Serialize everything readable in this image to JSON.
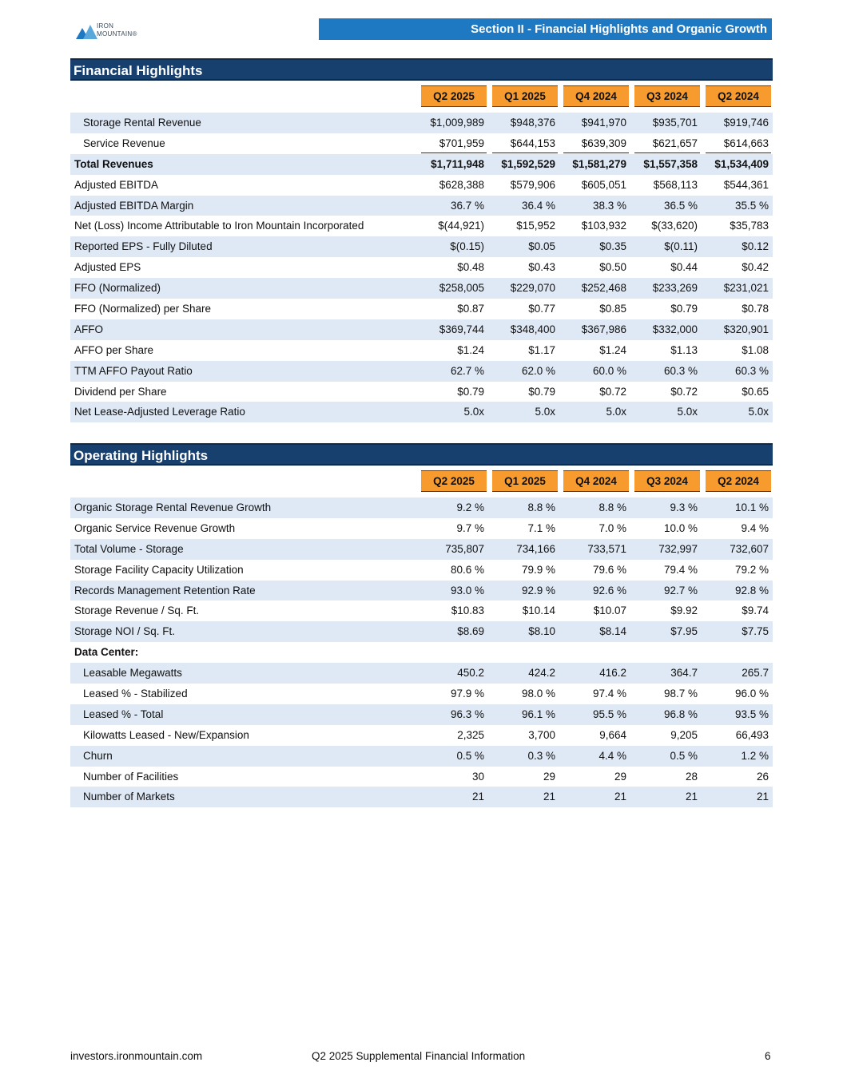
{
  "header": {
    "logo_text": [
      "IRON",
      "MOUNTAIN®"
    ],
    "section_title": "Section II - Financial Highlights and Organic Growth"
  },
  "quarters": [
    "Q2 2025",
    "Q1 2025",
    "Q4 2024",
    "Q3 2024",
    "Q2 2024"
  ],
  "financial": {
    "title": "Financial Highlights",
    "rows": [
      {
        "label": "Storage Rental Revenue",
        "indent": true,
        "bold": false,
        "shade": true,
        "values": [
          "$1,009,989",
          "$948,376",
          "$941,970",
          "$935,701",
          "$919,746"
        ]
      },
      {
        "label": "Service Revenue",
        "indent": true,
        "bold": false,
        "shade": false,
        "underline": true,
        "values": [
          "$701,959",
          "$644,153",
          "$639,309",
          "$621,657",
          "$614,663"
        ]
      },
      {
        "label": "Total Revenues",
        "indent": false,
        "bold": true,
        "shade": true,
        "values": [
          "$1,711,948",
          "$1,592,529",
          "$1,581,279",
          "$1,557,358",
          "$1,534,409"
        ]
      },
      {
        "label": "Adjusted EBITDA",
        "indent": false,
        "bold": false,
        "shade": false,
        "values": [
          "$628,388",
          "$579,906",
          "$605,051",
          "$568,113",
          "$544,361"
        ]
      },
      {
        "label": "Adjusted EBITDA Margin",
        "indent": false,
        "bold": false,
        "shade": true,
        "values": [
          "36.7 %",
          "36.4 %",
          "38.3 %",
          "36.5 %",
          "35.5 %"
        ]
      },
      {
        "label": "Net (Loss) Income Attributable to Iron Mountain Incorporated",
        "indent": false,
        "bold": false,
        "shade": false,
        "values": [
          "$(44,921)",
          "$15,952",
          "$103,932",
          "$(33,620)",
          "$35,783"
        ]
      },
      {
        "label": "Reported EPS - Fully Diluted",
        "indent": false,
        "bold": false,
        "shade": true,
        "values": [
          "$(0.15)",
          "$0.05",
          "$0.35",
          "$(0.11)",
          "$0.12"
        ]
      },
      {
        "label": "Adjusted EPS",
        "indent": false,
        "bold": false,
        "shade": false,
        "values": [
          "$0.48",
          "$0.43",
          "$0.50",
          "$0.44",
          "$0.42"
        ]
      },
      {
        "label": "FFO (Normalized)",
        "indent": false,
        "bold": false,
        "shade": true,
        "values": [
          "$258,005",
          "$229,070",
          "$252,468",
          "$233,269",
          "$231,021"
        ]
      },
      {
        "label": "FFO (Normalized) per Share",
        "indent": false,
        "bold": false,
        "shade": false,
        "values": [
          "$0.87",
          "$0.77",
          "$0.85",
          "$0.79",
          "$0.78"
        ]
      },
      {
        "label": "AFFO",
        "indent": false,
        "bold": false,
        "shade": true,
        "values": [
          "$369,744",
          "$348,400",
          "$367,986",
          "$332,000",
          "$320,901"
        ]
      },
      {
        "label": "AFFO per Share",
        "indent": false,
        "bold": false,
        "shade": false,
        "values": [
          "$1.24",
          "$1.17",
          "$1.24",
          "$1.13",
          "$1.08"
        ]
      },
      {
        "label": "TTM AFFO Payout Ratio",
        "indent": false,
        "bold": false,
        "shade": true,
        "values": [
          "62.7 %",
          "62.0 %",
          "60.0 %",
          "60.3 %",
          "60.3 %"
        ]
      },
      {
        "label": "Dividend per Share",
        "indent": false,
        "bold": false,
        "shade": false,
        "values": [
          "$0.79",
          "$0.79",
          "$0.72",
          "$0.72",
          "$0.65"
        ]
      },
      {
        "label": "Net Lease-Adjusted Leverage Ratio",
        "indent": false,
        "bold": false,
        "shade": true,
        "values": [
          "5.0x",
          "5.0x",
          "5.0x",
          "5.0x",
          "5.0x"
        ]
      }
    ]
  },
  "operating": {
    "title": "Operating Highlights",
    "rows": [
      {
        "label": "Organic Storage Rental Revenue Growth",
        "indent": false,
        "bold": false,
        "shade": true,
        "values": [
          "9.2 %",
          "8.8 %",
          "8.8 %",
          "9.3 %",
          "10.1 %"
        ]
      },
      {
        "label": "Organic Service Revenue Growth",
        "indent": false,
        "bold": false,
        "shade": false,
        "values": [
          "9.7 %",
          "7.1 %",
          "7.0 %",
          "10.0 %",
          "9.4 %"
        ]
      },
      {
        "label": "Total Volume - Storage",
        "indent": false,
        "bold": false,
        "shade": true,
        "values": [
          "735,807",
          "734,166",
          "733,571",
          "732,997",
          "732,607"
        ]
      },
      {
        "label": "Storage Facility Capacity Utilization",
        "indent": false,
        "bold": false,
        "shade": false,
        "values": [
          "80.6 %",
          "79.9 %",
          "79.6 %",
          "79.4 %",
          "79.2 %"
        ]
      },
      {
        "label": "Records Management Retention Rate",
        "indent": false,
        "bold": false,
        "shade": true,
        "values": [
          "93.0 %",
          "92.9 %",
          "92.6 %",
          "92.7 %",
          "92.8 %"
        ]
      },
      {
        "label": "Storage Revenue / Sq. Ft.",
        "indent": false,
        "bold": false,
        "shade": false,
        "values": [
          "$10.83",
          "$10.14",
          "$10.07",
          "$9.92",
          "$9.74"
        ]
      },
      {
        "label": "Storage NOI / Sq. Ft.",
        "indent": false,
        "bold": false,
        "shade": true,
        "values": [
          "$8.69",
          "$8.10",
          "$8.14",
          "$7.95",
          "$7.75"
        ]
      },
      {
        "label": "Data Center:",
        "indent": false,
        "bold": true,
        "shade": false,
        "values": [
          "",
          "",
          "",
          "",
          ""
        ]
      },
      {
        "label": "Leasable Megawatts",
        "indent": true,
        "bold": false,
        "shade": true,
        "values": [
          "450.2",
          "424.2",
          "416.2",
          "364.7",
          "265.7"
        ]
      },
      {
        "label": "Leased % - Stabilized",
        "indent": true,
        "bold": false,
        "shade": false,
        "values": [
          "97.9 %",
          "98.0 %",
          "97.4 %",
          "98.7 %",
          "96.0 %"
        ]
      },
      {
        "label": "Leased % - Total",
        "indent": true,
        "bold": false,
        "shade": true,
        "values": [
          "96.3 %",
          "96.1 %",
          "95.5 %",
          "96.8 %",
          "93.5 %"
        ]
      },
      {
        "label": "Kilowatts Leased - New/Expansion",
        "indent": true,
        "bold": false,
        "shade": false,
        "values": [
          "2,325",
          "3,700",
          "9,664",
          "9,205",
          "66,493"
        ]
      },
      {
        "label": "Churn",
        "indent": true,
        "bold": false,
        "shade": true,
        "values": [
          "0.5 %",
          "0.3 %",
          "4.4 %",
          "0.5 %",
          "1.2 %"
        ]
      },
      {
        "label": "Number of Facilities",
        "indent": true,
        "bold": false,
        "shade": false,
        "values": [
          "30",
          "29",
          "29",
          "28",
          "26"
        ]
      },
      {
        "label": "Number of Markets",
        "indent": true,
        "bold": false,
        "shade": true,
        "values": [
          "21",
          "21",
          "21",
          "21",
          "21"
        ]
      }
    ]
  },
  "footer": {
    "website": "investors.ironmountain.com",
    "doc_title": "Q2 2025 Supplemental Financial Information",
    "page_number": "6"
  },
  "colors": {
    "banner_blue": "#1e78c2",
    "title_navy": "#17406f",
    "header_orange": "#f79b2e",
    "row_shade": "#dfe9f6"
  }
}
